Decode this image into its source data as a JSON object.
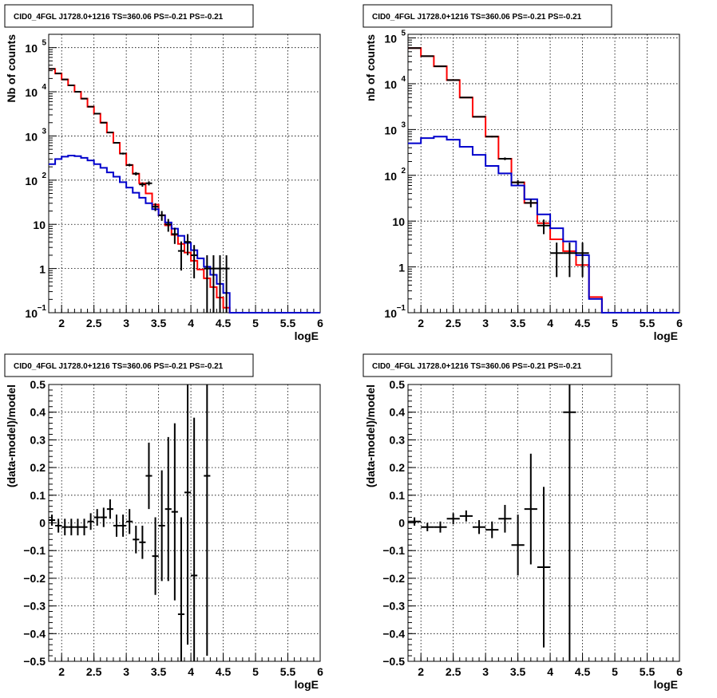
{
  "colors": {
    "model_total": "#ff0000",
    "model_source": "#0000cc",
    "data": "#000000"
  },
  "chart_data": [
    {
      "type": "line",
      "panel": "top-left",
      "title": "CID0_4FGL J1728.0+1216 TS=360.06 PS=-0.21 PS=-0.21",
      "xlabel": "logE",
      "ylabel": "Nb of counts",
      "xlim": [
        1.8,
        6.0
      ],
      "ylim": [
        0.1,
        200000
      ],
      "yscale": "log",
      "grid": true,
      "xticks": [
        2,
        2.5,
        3,
        3.5,
        4,
        4.5,
        5,
        5.5,
        6
      ],
      "xtick_labels": [
        "2",
        "2.5",
        "3",
        "3.5",
        "4",
        "4.5",
        "5",
        "5.5",
        "6"
      ],
      "yticks": [
        0.1,
        1,
        10,
        100,
        1000,
        10000,
        100000
      ],
      "ytick_labels": [
        [
          "10",
          "−1"
        ],
        [
          "1",
          ""
        ],
        [
          "10",
          ""
        ],
        [
          "10",
          "2"
        ],
        [
          "10",
          "3"
        ],
        [
          "10",
          "4"
        ],
        [
          "10",
          "5"
        ]
      ],
      "series": [
        {
          "style": "histogram",
          "color": "#ff0000",
          "edges": [
            1.8,
            1.9,
            2.0,
            2.1,
            2.2,
            2.3,
            2.4,
            2.5,
            2.6,
            2.7,
            2.8,
            2.9,
            3.0,
            3.1,
            3.2,
            3.3,
            3.4,
            3.5,
            3.6,
            3.7,
            3.8,
            3.9,
            4.0,
            4.1,
            4.2,
            4.3,
            4.4,
            4.5,
            4.6,
            4.7,
            4.8,
            4.9,
            5.0,
            5.1,
            5.2,
            5.3,
            5.4,
            5.5,
            5.6,
            5.7,
            5.8,
            5.9,
            6.0
          ],
          "values": [
            33000,
            26000,
            19000,
            14000,
            10000,
            7000,
            4600,
            3200,
            2000,
            1200,
            700,
            400,
            220,
            140,
            85,
            50,
            28,
            16,
            9.5,
            5.8,
            3.6,
            2.3,
            1.5,
            0.95,
            0.6,
            0.38,
            0.22,
            0.13,
            0.1,
            0.1,
            0.1,
            0.1,
            0.1,
            0.1,
            0.1,
            0.1,
            0.1,
            0.1,
            0.1,
            0.1,
            0.1,
            0.1
          ]
        },
        {
          "style": "histogram",
          "color": "#0000cc",
          "edges": [
            1.8,
            1.9,
            2.0,
            2.1,
            2.2,
            2.3,
            2.4,
            2.5,
            2.6,
            2.7,
            2.8,
            2.9,
            3.0,
            3.1,
            3.2,
            3.3,
            3.4,
            3.5,
            3.6,
            3.7,
            3.8,
            3.9,
            4.0,
            4.1,
            4.2,
            4.3,
            4.4,
            4.5,
            4.6,
            4.7,
            4.8,
            4.9,
            5.0,
            5.1,
            5.2,
            5.3,
            5.4,
            5.5,
            5.6,
            5.7,
            5.8,
            5.9,
            6.0
          ],
          "values": [
            230,
            300,
            340,
            360,
            350,
            320,
            280,
            230,
            190,
            150,
            120,
            90,
            68,
            52,
            40,
            30,
            22,
            16,
            11,
            8,
            5.5,
            3.8,
            2.6,
            1.7,
            1.1,
            0.72,
            0.45,
            0.28,
            0.1,
            0.1,
            0.1,
            0.1,
            0.1,
            0.1,
            0.1,
            0.1,
            0.1,
            0.1,
            0.1,
            0.1,
            0.1,
            0.1
          ]
        },
        {
          "style": "errorbar",
          "color": "#000000",
          "x": [
            1.85,
            1.95,
            2.05,
            2.15,
            2.25,
            2.35,
            2.45,
            2.55,
            2.65,
            2.75,
            2.85,
            2.95,
            3.05,
            3.15,
            3.25,
            3.35,
            3.45,
            3.55,
            3.65,
            3.75,
            3.85,
            3.95,
            4.05,
            4.25,
            4.35,
            4.45,
            4.55
          ],
          "y": [
            33000,
            26000,
            19000,
            14000,
            10000,
            7000,
            4600,
            3200,
            2000,
            1200,
            700,
            400,
            220,
            140,
            80,
            85,
            25,
            16,
            10,
            6,
            2.5,
            4,
            2,
            1,
            1,
            1,
            1
          ],
          "yerr": [
            180,
            160,
            140,
            120,
            100,
            85,
            68,
            57,
            45,
            35,
            26,
            20,
            15,
            12,
            9,
            9,
            5,
            4,
            3.2,
            2.4,
            1.6,
            2,
            1.4,
            1,
            1,
            1,
            1
          ],
          "xerr": [
            0.05,
            0.05,
            0.05,
            0.05,
            0.05,
            0.05,
            0.05,
            0.05,
            0.05,
            0.05,
            0.05,
            0.05,
            0.05,
            0.05,
            0.05,
            0.05,
            0.05,
            0.05,
            0.05,
            0.05,
            0.05,
            0.05,
            0.05,
            0.05,
            0.05,
            0.05,
            0.05
          ]
        }
      ]
    },
    {
      "type": "line",
      "panel": "top-right",
      "title": "CID0_4FGL J1728.0+1216 TS=360.06 PS=-0.21 PS=-0.21",
      "xlabel": "logE",
      "ylabel": "nb of counts",
      "xlim": [
        1.8,
        6.0
      ],
      "ylim": [
        0.1,
        120000
      ],
      "yscale": "log",
      "grid": true,
      "xticks": [
        2,
        2.5,
        3,
        3.5,
        4,
        4.5,
        5,
        5.5,
        6
      ],
      "xtick_labels": [
        "2",
        "2.5",
        "3",
        "3.5",
        "4",
        "4.5",
        "5",
        "5.5",
        "6"
      ],
      "yticks": [
        0.1,
        1,
        10,
        100,
        1000,
        10000,
        100000
      ],
      "ytick_labels": [
        [
          "10",
          "−1"
        ],
        [
          "1",
          ""
        ],
        [
          "10",
          ""
        ],
        [
          "10",
          "2"
        ],
        [
          "10",
          "3"
        ],
        [
          "10",
          "4"
        ],
        [
          "10",
          "5"
        ]
      ],
      "series": [
        {
          "style": "histogram",
          "color": "#ff0000",
          "edges": [
            1.8,
            2.0,
            2.2,
            2.4,
            2.6,
            2.8,
            3.0,
            3.2,
            3.4,
            3.6,
            3.8,
            4.0,
            4.2,
            4.4,
            4.6,
            4.8,
            5.0,
            5.2,
            5.4,
            5.6,
            5.8,
            6.0
          ],
          "values": [
            60000,
            40000,
            24000,
            12000,
            5000,
            1900,
            700,
            230,
            70,
            25,
            9,
            4,
            2.2,
            1.1,
            0.22,
            0.1,
            0.1,
            0.1,
            0.1,
            0.1,
            0.1
          ]
        },
        {
          "style": "histogram",
          "color": "#0000cc",
          "edges": [
            1.8,
            2.0,
            2.2,
            2.4,
            2.6,
            2.8,
            3.0,
            3.2,
            3.4,
            3.6,
            3.8,
            4.0,
            4.2,
            4.4,
            4.6,
            4.8,
            5.0,
            5.2,
            5.4,
            5.6,
            5.8,
            6.0
          ],
          "values": [
            500,
            650,
            700,
            600,
            420,
            280,
            160,
            110,
            60,
            30,
            14,
            7,
            3.6,
            1.8,
            0.2,
            0.1,
            0.1,
            0.1,
            0.1,
            0.1,
            0.1
          ]
        },
        {
          "style": "errorbar",
          "color": "#000000",
          "x": [
            1.9,
            2.1,
            2.3,
            2.5,
            2.7,
            2.9,
            3.1,
            3.3,
            3.5,
            3.7,
            3.9,
            4.1,
            4.3,
            4.5
          ],
          "y": [
            60000,
            40000,
            24000,
            12000,
            5000,
            1900,
            700,
            230,
            70,
            25,
            8,
            2,
            2,
            2
          ],
          "yerr": [
            245,
            200,
            155,
            110,
            70,
            44,
            26,
            15,
            8.4,
            5,
            2.8,
            1.4,
            1.4,
            1.4
          ],
          "xerr": [
            0.1,
            0.1,
            0.1,
            0.1,
            0.1,
            0.1,
            0.1,
            0.1,
            0.1,
            0.1,
            0.1,
            0.1,
            0.1,
            0.1
          ]
        }
      ]
    },
    {
      "type": "scatter",
      "panel": "bottom-left",
      "title": "CID0_4FGL J1728.0+1216 TS=360.06 PS=-0.21 PS=-0.21",
      "xlabel": "logE",
      "ylabel": "(data-model)/model",
      "xlim": [
        1.8,
        6.0
      ],
      "ylim": [
        -0.5,
        0.5
      ],
      "yscale": "linear",
      "grid": true,
      "xticks": [
        2,
        2.5,
        3,
        3.5,
        4,
        4.5,
        5,
        5.5,
        6
      ],
      "xtick_labels": [
        "2",
        "2.5",
        "3",
        "3.5",
        "4",
        "4.5",
        "5",
        "5.5",
        "6"
      ],
      "yticks": [
        -0.5,
        -0.4,
        -0.3,
        -0.2,
        -0.1,
        0,
        0.1,
        0.2,
        0.3,
        0.4,
        0.5
      ],
      "ytick_labels": [
        "−0.5",
        "−0.4",
        "−0.3",
        "−0.2",
        "−0.1",
        "0",
        "0.1",
        "0.2",
        "0.3",
        "0.4",
        "0.5"
      ],
      "series": [
        {
          "style": "errorbar",
          "color": "#000000",
          "x": [
            1.85,
            1.95,
            2.05,
            2.15,
            2.25,
            2.35,
            2.45,
            2.55,
            2.65,
            2.75,
            2.85,
            2.95,
            3.05,
            3.15,
            3.25,
            3.35,
            3.45,
            3.55,
            3.65,
            3.75,
            3.85,
            3.95,
            4.05,
            4.25
          ],
          "y": [
            0.01,
            -0.01,
            -0.015,
            -0.015,
            -0.015,
            -0.015,
            0.005,
            0.02,
            0.02,
            0.05,
            -0.01,
            -0.01,
            0.005,
            -0.06,
            -0.07,
            0.17,
            -0.12,
            -0.01,
            0.05,
            0.04,
            -0.33,
            0.11,
            -0.19,
            0.17
          ],
          "yerr": [
            0.02,
            0.025,
            0.03,
            0.03,
            0.03,
            0.03,
            0.03,
            0.03,
            0.035,
            0.035,
            0.04,
            0.04,
            0.045,
            0.05,
            0.06,
            0.12,
            0.14,
            0.2,
            0.26,
            0.32,
            0.35,
            0.55,
            0.57,
            0.65
          ],
          "xerr": [
            0.05,
            0.05,
            0.05,
            0.05,
            0.05,
            0.05,
            0.05,
            0.05,
            0.05,
            0.05,
            0.05,
            0.05,
            0.05,
            0.05,
            0.05,
            0.05,
            0.05,
            0.05,
            0.05,
            0.05,
            0.05,
            0.05,
            0.05,
            0.05
          ]
        }
      ]
    },
    {
      "type": "scatter",
      "panel": "bottom-right",
      "title": "CID0_4FGL J1728.0+1216 TS=360.06 PS=-0.21 PS=-0.21",
      "xlabel": "logE",
      "ylabel": "(data-model)/model",
      "xlim": [
        1.8,
        6.0
      ],
      "ylim": [
        -0.5,
        0.5
      ],
      "yscale": "linear",
      "grid": true,
      "xticks": [
        2,
        2.5,
        3,
        3.5,
        4,
        4.5,
        5,
        5.5,
        6
      ],
      "xtick_labels": [
        "2",
        "2.5",
        "3",
        "3.5",
        "4",
        "4.5",
        "5",
        "5.5",
        "6"
      ],
      "yticks": [
        -0.5,
        -0.4,
        -0.3,
        -0.2,
        -0.1,
        0,
        0.1,
        0.2,
        0.3,
        0.4,
        0.5
      ],
      "ytick_labels": [
        "−0.5",
        "−0.4",
        "−0.3",
        "−0.2",
        "−0.1",
        "0",
        "0.1",
        "0.2",
        "0.3",
        "0.4",
        "0.5"
      ],
      "series": [
        {
          "style": "errorbar",
          "color": "#000000",
          "x": [
            1.9,
            2.1,
            2.3,
            2.5,
            2.7,
            2.9,
            3.1,
            3.3,
            3.5,
            3.7,
            3.9,
            4.3
          ],
          "y": [
            0.005,
            -0.015,
            -0.015,
            0.015,
            0.025,
            -0.015,
            -0.025,
            0.015,
            -0.08,
            0.05,
            -0.16,
            0.4
          ],
          "yerr": [
            0.015,
            0.015,
            0.02,
            0.02,
            0.02,
            0.025,
            0.03,
            0.05,
            0.11,
            0.2,
            0.29,
            1.0
          ],
          "xerr": [
            0.1,
            0.1,
            0.1,
            0.1,
            0.1,
            0.1,
            0.1,
            0.1,
            0.1,
            0.1,
            0.1,
            0.1
          ]
        }
      ]
    }
  ]
}
